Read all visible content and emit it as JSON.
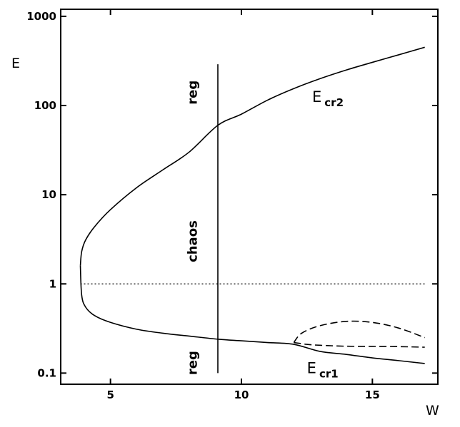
{
  "chart_data": {
    "type": "line",
    "xlabel": "W",
    "ylabel": "E",
    "xlim": [
      3.1,
      17.5
    ],
    "ylim": [
      0.075,
      1200
    ],
    "y_scale": "log",
    "grid": false,
    "x_ticks": [
      5,
      10,
      15
    ],
    "x_tick_labels": [
      "5",
      "10",
      "15"
    ],
    "y_ticks": [
      0.1,
      1,
      10,
      100,
      1000
    ],
    "y_tick_labels": [
      "0.1",
      "1",
      "10",
      "100",
      "1000"
    ],
    "series": [
      {
        "label": "E_cr2",
        "style": "solid",
        "x": [
          3.85,
          3.9,
          4.05,
          4.4,
          5.0,
          6.0,
          7.0,
          8.0,
          9.1,
          10.0,
          11.0,
          12.0,
          13.0,
          14.0,
          15.0,
          16.0,
          17.0
        ],
        "y": [
          1.6,
          2.3,
          3.1,
          4.4,
          6.8,
          12,
          19,
          30,
          60,
          80,
          115,
          155,
          200,
          250,
          305,
          370,
          450
        ]
      },
      {
        "label": "E_cr1",
        "style": "solid",
        "x": [
          3.85,
          3.9,
          4.05,
          4.4,
          5.0,
          6.0,
          7.0,
          8.0,
          9.1,
          10.0,
          11.0,
          12.0,
          13.0,
          14.0,
          15.0,
          16.0,
          17.0
        ],
        "y": [
          1.6,
          0.75,
          0.55,
          0.44,
          0.37,
          0.31,
          0.28,
          0.26,
          0.24,
          0.23,
          0.22,
          0.21,
          0.175,
          0.162,
          0.148,
          0.138,
          0.128
        ]
      },
      {
        "label": "dashed-upper",
        "style": "dashed",
        "x": [
          12.0,
          12.3,
          13.0,
          14.0,
          15.0,
          16.0,
          17.0
        ],
        "y": [
          0.22,
          0.28,
          0.34,
          0.38,
          0.37,
          0.32,
          0.25
        ]
      },
      {
        "label": "dashed-lower",
        "style": "dashed",
        "x": [
          12.0,
          12.5,
          13.0,
          14.0,
          15.0,
          16.0,
          17.0
        ],
        "y": [
          0.22,
          0.21,
          0.205,
          0.2,
          0.199,
          0.198,
          0.195
        ]
      },
      {
        "label": "E=1",
        "style": "dotted",
        "x": [
          3.85,
          17.0
        ],
        "y": [
          1.0,
          1.0
        ]
      },
      {
        "label": "W=9.1",
        "style": "solid",
        "x": [
          9.1,
          9.1
        ],
        "y": [
          0.1,
          290
        ]
      }
    ],
    "annotations": [
      {
        "text": "reg",
        "x": 8.3,
        "y": 140,
        "rotation": -90
      },
      {
        "text": "chaos",
        "x": 8.3,
        "y": 3,
        "rotation": -90
      },
      {
        "text": "reg",
        "x": 8.3,
        "y": 0.13,
        "rotation": -90
      }
    ],
    "curve_labels": [
      {
        "main": "E",
        "sub": "cr2",
        "x": 12.7,
        "y": 110
      },
      {
        "main": "E",
        "sub": "cr1",
        "x": 12.5,
        "y": 0.1
      }
    ]
  }
}
